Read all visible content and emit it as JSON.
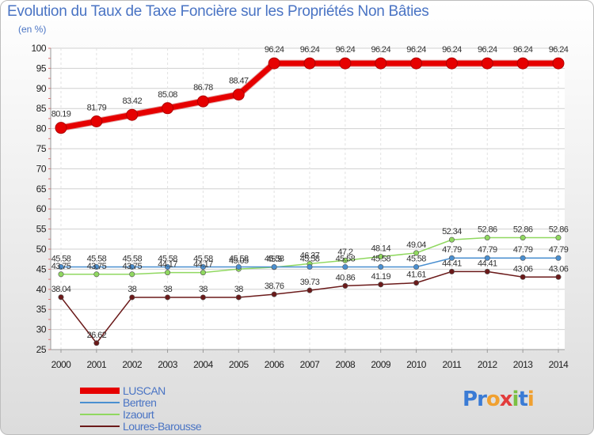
{
  "title": "Evolution du Taux de Taxe Foncière sur les Propriétés Non Bâties",
  "unit_label": "(en %)",
  "logo": {
    "text": "Proxiti",
    "letters": [
      "P",
      "r",
      "o",
      "x",
      "i",
      "t",
      "i"
    ],
    "colors": [
      "#3a7bd5",
      "#3a7bd5",
      "#f0a030",
      "#e23c3c",
      "#7bc043",
      "#3a7bd5",
      "#f0a030"
    ]
  },
  "chart_data": {
    "type": "line",
    "title": "Evolution du Taux de Taxe Foncière sur les Propriétés Non Bâties",
    "ylabel": "(en %)",
    "xlabel": "",
    "ylim": [
      25,
      100
    ],
    "yticks": [
      25,
      30,
      35,
      40,
      45,
      50,
      55,
      60,
      65,
      70,
      75,
      80,
      85,
      90,
      95,
      100
    ],
    "x": [
      2000,
      2001,
      2002,
      2003,
      2004,
      2005,
      2006,
      2007,
      2008,
      2009,
      2010,
      2011,
      2012,
      2013,
      2014
    ],
    "legend_position": "bottom-left",
    "series": [
      {
        "name": "LUSCAN",
        "color": "#e60000",
        "thick": true,
        "values": [
          80.19,
          81.79,
          83.42,
          85.08,
          86.78,
          88.47,
          96.24,
          96.24,
          96.24,
          96.24,
          96.24,
          96.24,
          96.24,
          96.24,
          96.24
        ],
        "labels": [
          "80.19",
          "81.79",
          "83.42",
          "85.08",
          "86.78",
          "88.47",
          "96.24",
          "96.24",
          "96.24",
          "96.24",
          "96.24",
          "96.24",
          "96.24",
          "96.24",
          "96.24"
        ]
      },
      {
        "name": "Bertren",
        "color": "#4a8fd0",
        "thick": false,
        "values": [
          45.58,
          45.58,
          45.58,
          45.58,
          45.58,
          45.58,
          45.58,
          45.58,
          45.58,
          45.58,
          45.58,
          47.79,
          47.79,
          47.79,
          47.79
        ],
        "labels": [
          "45.58",
          "45.58",
          "45.58",
          "45.58",
          "45.58",
          "45.58",
          "45.58",
          "45.58",
          "45.58",
          "45.58",
          "45.58",
          "47.79",
          "47.79",
          "47.79",
          "47.79"
        ]
      },
      {
        "name": "Izaourt",
        "color": "#90d860",
        "thick": false,
        "values": [
          43.75,
          43.75,
          43.75,
          44.17,
          44.17,
          45.05,
          45.5,
          46.37,
          47.2,
          48.14,
          49.04,
          52.34,
          52.86,
          52.86,
          52.86
        ],
        "labels": [
          "43.75",
          "43.75",
          "43.75",
          "44.17",
          "44.17",
          "45.05",
          "45.5",
          "46.37",
          "47.2",
          "48.14",
          "49.04",
          "52.34",
          "52.86",
          "52.86",
          "52.86"
        ]
      },
      {
        "name": "Loures-Barousse",
        "color": "#6b1a1a",
        "thick": false,
        "values": [
          38.04,
          26.62,
          38,
          38,
          38,
          38,
          38.76,
          39.73,
          40.86,
          41.19,
          41.61,
          44.41,
          44.41,
          43.06,
          43.06
        ],
        "labels": [
          "38.04",
          "26.62",
          "38",
          "38",
          "38",
          "38",
          "38.76",
          "39.73",
          "40.86",
          "41.19",
          "41.61",
          "44.41",
          "44.41",
          "43.06",
          "43.06"
        ]
      }
    ]
  }
}
